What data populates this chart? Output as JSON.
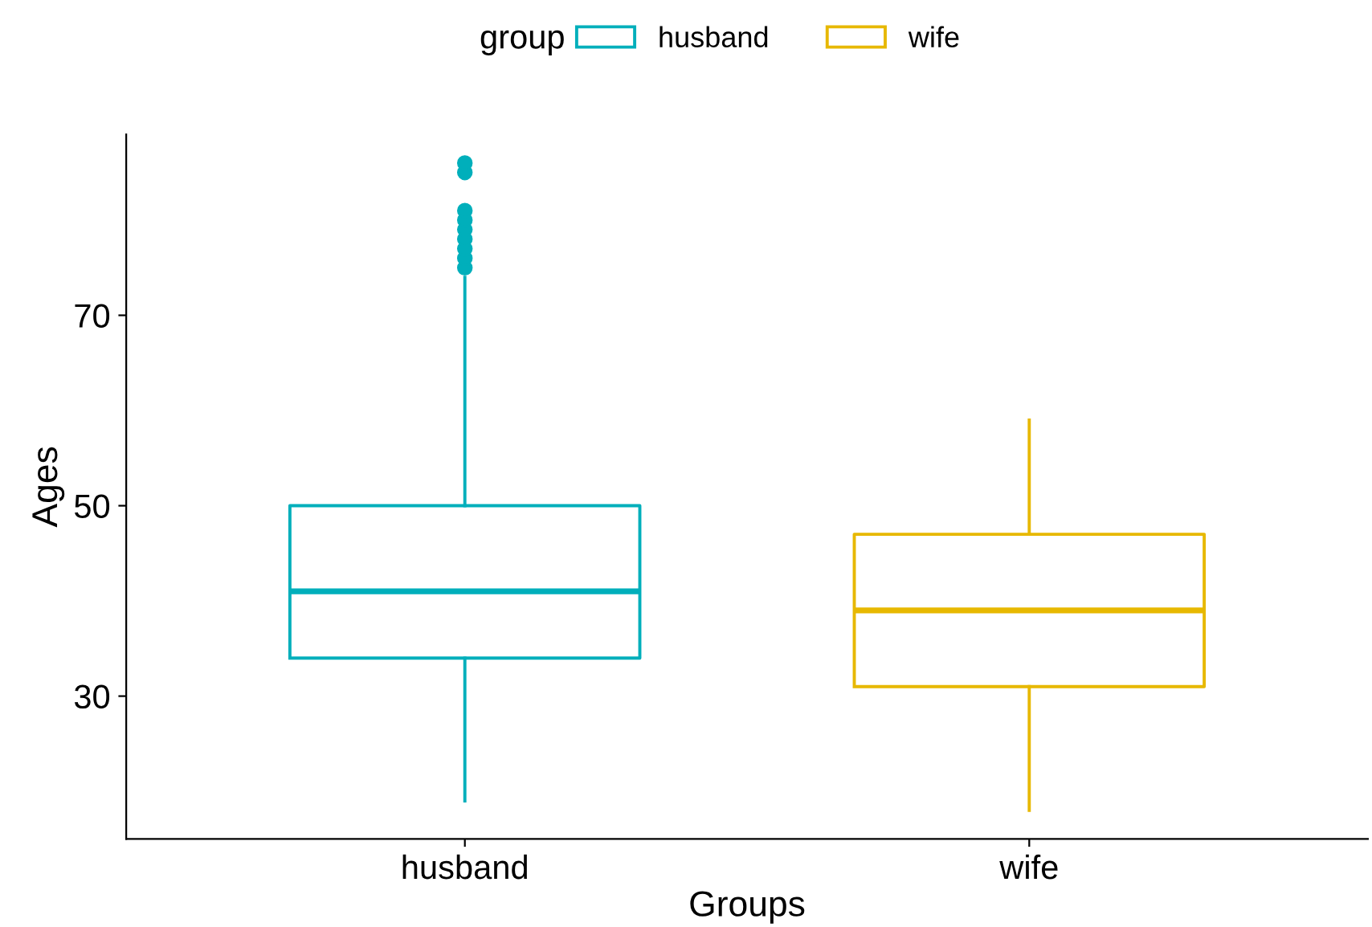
{
  "chart_data": {
    "type": "box",
    "xlabel": "Groups",
    "ylabel": "Ages",
    "legend_title": "group",
    "legend": "top",
    "categories": [
      "husband",
      "wife"
    ],
    "series": [
      {
        "name": "husband",
        "color": "#00afbb",
        "boxes": [
          {
            "low": 19,
            "q1": 34,
            "median": 41,
            "q3": 50,
            "high": 74,
            "outliers": [
              75,
              76,
              77,
              78,
              79,
              80,
              81,
              85,
              86
            ]
          },
          null
        ]
      },
      {
        "name": "wife",
        "color": "#e7b800",
        "boxes": [
          null,
          {
            "low": 18,
            "q1": 31,
            "median": 39,
            "q3": 47,
            "high": 59
          }
        ]
      }
    ],
    "ylim": [
      15,
      89
    ],
    "yticks": [
      30,
      50,
      70
    ],
    "grid": false
  }
}
